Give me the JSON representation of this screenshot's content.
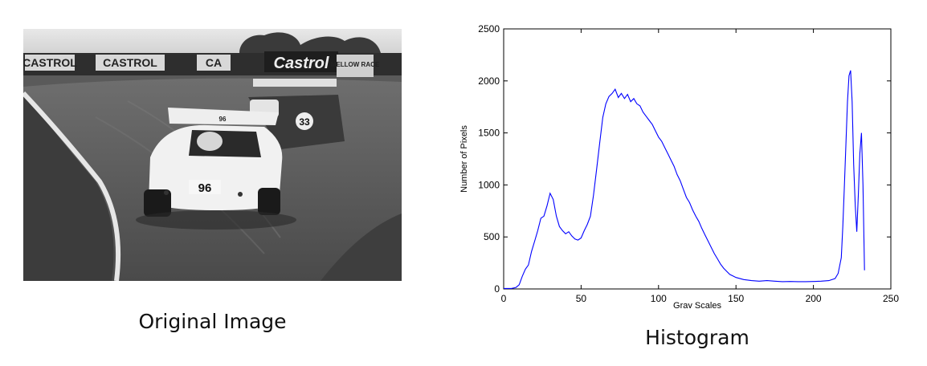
{
  "captions": {
    "left": "Original Image",
    "right": "Histogram"
  },
  "photo": {
    "signage": [
      "CASTROL",
      "CASTROL",
      "CA",
      "Castrol",
      "MELLOW RACE"
    ],
    "car_numbers": [
      "96",
      "33"
    ]
  },
  "chart_data": {
    "type": "line",
    "title": "",
    "xlabel": "Gray Scales",
    "ylabel": "Number of Pixels",
    "xlim": [
      0,
      250
    ],
    "ylim": [
      0,
      2500
    ],
    "xticks": [
      0,
      50,
      100,
      150,
      200,
      250
    ],
    "yticks": [
      0,
      500,
      1000,
      1500,
      2000,
      2500
    ],
    "grid": false,
    "color": "#0000ff",
    "series": [
      {
        "x": [
          0,
          5,
          8,
          10,
          12,
          14,
          16,
          18,
          20,
          22,
          24,
          26,
          28,
          30,
          32,
          34,
          36,
          38,
          40,
          42,
          44,
          46,
          48,
          50,
          52,
          54,
          56,
          58,
          60,
          62,
          64,
          66,
          68,
          70,
          72,
          74,
          76,
          78,
          80,
          82,
          84,
          86,
          88,
          90,
          92,
          94,
          96,
          98,
          100,
          102,
          104,
          106,
          108,
          110,
          112,
          114,
          116,
          118,
          120,
          122,
          124,
          126,
          128,
          130,
          132,
          134,
          136,
          138,
          140,
          142,
          144,
          146,
          148,
          150,
          155,
          160,
          165,
          170,
          175,
          180,
          185,
          190,
          195,
          200,
          205,
          210,
          214,
          216,
          218,
          219,
          220,
          221,
          222,
          223,
          224,
          225,
          226,
          227,
          228,
          229,
          230,
          231,
          232,
          233
        ],
        "y": [
          5,
          5,
          15,
          40,
          120,
          190,
          230,
          360,
          460,
          560,
          680,
          700,
          800,
          920,
          860,
          700,
          600,
          560,
          530,
          550,
          510,
          480,
          470,
          490,
          560,
          620,
          700,
          900,
          1150,
          1400,
          1650,
          1780,
          1850,
          1880,
          1920,
          1840,
          1880,
          1830,
          1870,
          1800,
          1830,
          1780,
          1760,
          1700,
          1660,
          1620,
          1580,
          1520,
          1460,
          1420,
          1360,
          1300,
          1240,
          1180,
          1100,
          1040,
          960,
          880,
          830,
          760,
          700,
          650,
          580,
          520,
          460,
          400,
          340,
          290,
          240,
          200,
          170,
          140,
          125,
          110,
          90,
          80,
          75,
          80,
          75,
          70,
          72,
          70,
          70,
          72,
          75,
          80,
          100,
          150,
          300,
          600,
          1000,
          1400,
          1800,
          2050,
          2100,
          1800,
          1200,
          800,
          550,
          900,
          1300,
          1500,
          1000,
          180
        ]
      }
    ]
  }
}
